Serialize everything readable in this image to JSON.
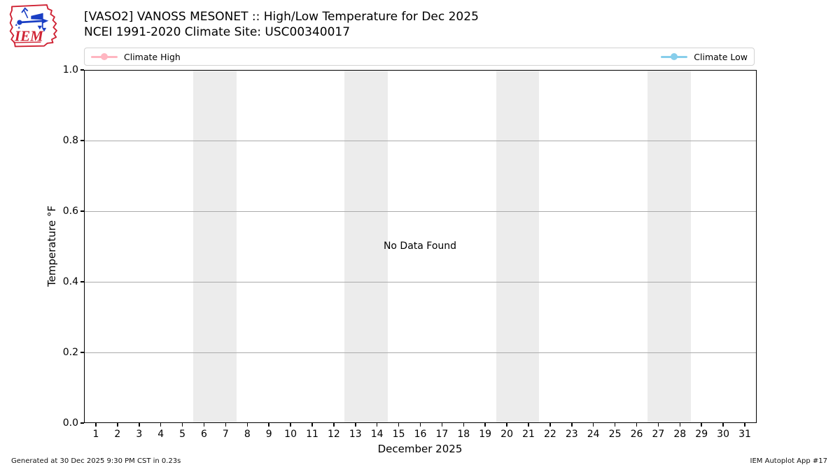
{
  "header": {
    "logo_text": "IEM",
    "title": "[VASO2] VANOSS MESONET :: High/Low Temperature for Dec 2025",
    "subtitle": "NCEI 1991-2020 Climate Site: USC00340017"
  },
  "legend": {
    "items": [
      {
        "label": "Climate High",
        "color": "#ffb6c1"
      },
      {
        "label": "Climate Low",
        "color": "#87ceeb"
      }
    ]
  },
  "chart_data": {
    "type": "line",
    "title": "[VASO2] VANOSS MESONET :: High/Low Temperature for Dec 2025",
    "subtitle": "NCEI 1991-2020 Climate Site: USC00340017",
    "xlabel": "December 2025",
    "ylabel": "Temperature °F",
    "x_ticks": [
      1,
      2,
      3,
      4,
      5,
      6,
      7,
      8,
      9,
      10,
      11,
      12,
      13,
      14,
      15,
      16,
      17,
      18,
      19,
      20,
      21,
      22,
      23,
      24,
      25,
      26,
      27,
      28,
      29,
      30,
      31
    ],
    "y_ticks": [
      "0.0",
      "0.2",
      "0.4",
      "0.6",
      "0.8",
      "1.0"
    ],
    "xlim": [
      0.45,
      31.55
    ],
    "ylim": [
      0.0,
      1.0
    ],
    "grid": true,
    "grid_color": "#ababab",
    "weekend_bands": [
      [
        5.5,
        7.5
      ],
      [
        12.5,
        14.5
      ],
      [
        19.5,
        21.5
      ],
      [
        26.5,
        28.5
      ]
    ],
    "band_color": "#ececec",
    "legend_position": "top, spanning plot width",
    "series": [
      {
        "name": "Climate High",
        "color": "#ffb6c1",
        "x": [],
        "values": []
      },
      {
        "name": "Climate Low",
        "color": "#87ceeb",
        "x": [],
        "values": []
      }
    ],
    "no_data_text": "No Data Found"
  },
  "footer": {
    "left": "Generated at 30 Dec 2025 9:30 PM CST in 0.23s",
    "right": "IEM Autoplot App #17"
  },
  "logo_colors": {
    "outline": "#cf2233",
    "instrument": "#1a3fc4"
  }
}
